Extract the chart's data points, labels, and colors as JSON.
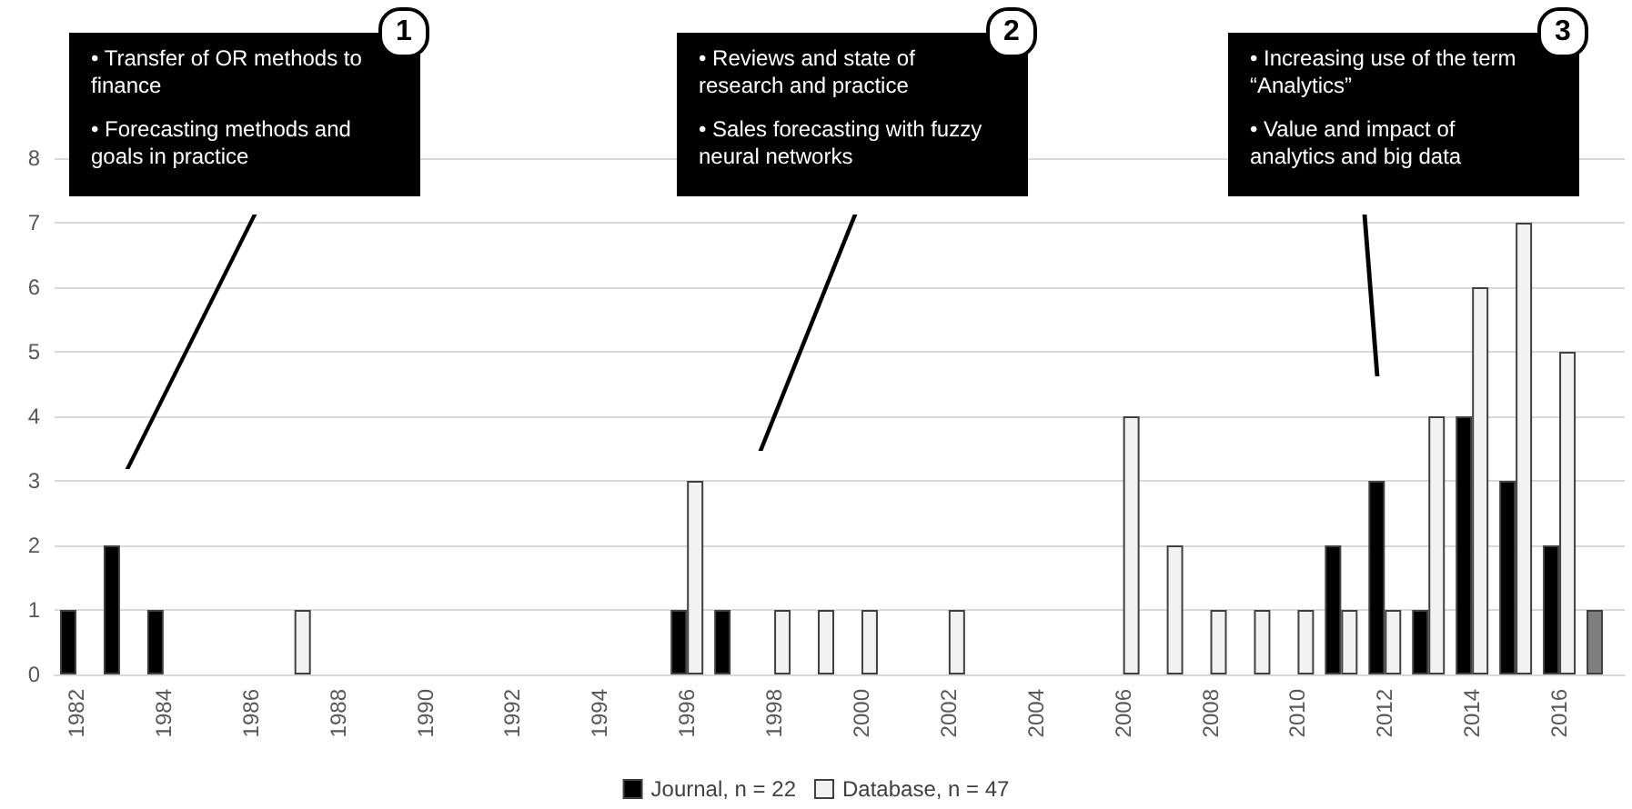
{
  "chart_data": {
    "type": "bar",
    "categories": [
      "1982",
      null,
      "1984",
      null,
      "1986",
      null,
      "1988",
      null,
      "1990",
      null,
      "1992",
      null,
      "1994",
      null,
      "1996",
      null,
      "1998",
      null,
      "2000",
      null,
      "2002",
      null,
      "2004",
      null,
      "2006",
      null,
      "2008",
      null,
      "2010",
      null,
      "2012",
      null,
      "2014",
      null,
      "2016",
      null
    ],
    "series": [
      {
        "name": "Journal, n = 22",
        "color": "#000000",
        "colors": [
          "#000000",
          "#000000",
          "#000000",
          "#000000",
          "#000000",
          "#000000",
          "#000000",
          "#000000",
          "#000000",
          "#000000",
          "#000000",
          "#000000",
          "#000000",
          "#000000",
          "#000000",
          "#000000",
          "#000000",
          "#000000",
          "#000000",
          "#000000",
          "#000000",
          "#000000",
          "#000000",
          "#000000",
          "#000000",
          "#000000",
          "#000000",
          "#000000",
          "#000000",
          "#000000",
          "#000000",
          "#000000",
          "#000000",
          "#000000",
          "#000000",
          "#7f7f7f"
        ],
        "values": [
          1,
          2,
          1,
          null,
          null,
          null,
          null,
          null,
          null,
          null,
          null,
          null,
          null,
          null,
          1,
          1,
          null,
          null,
          null,
          null,
          null,
          null,
          null,
          null,
          null,
          null,
          null,
          null,
          null,
          2,
          3,
          1,
          4,
          3,
          2,
          1
        ]
      },
      {
        "name": "Database, n = 47",
        "color": "#f2f2f2",
        "values": [
          null,
          null,
          null,
          null,
          null,
          1,
          null,
          null,
          null,
          null,
          null,
          null,
          null,
          null,
          3,
          null,
          1,
          1,
          1,
          null,
          1,
          null,
          null,
          null,
          4,
          2,
          1,
          1,
          1,
          1,
          1,
          4,
          6,
          7,
          5,
          null
        ]
      }
    ],
    "ylim": [
      0,
      8
    ],
    "yticks": [
      0,
      1,
      2,
      3,
      4,
      5,
      6,
      7,
      8
    ],
    "grid": "y",
    "legend": "bottom",
    "annotations": [
      "1",
      "• Transfer of OR methods to finance\n• Forecasting methods and goals in practice",
      "2",
      "• Reviews and state of research and practice\n• Sales forecasting with fuzzy  neural networks",
      "3",
      "• Increasing use of the term “Analytics”\n• Value and impact of analytics and big data"
    ]
  }
}
